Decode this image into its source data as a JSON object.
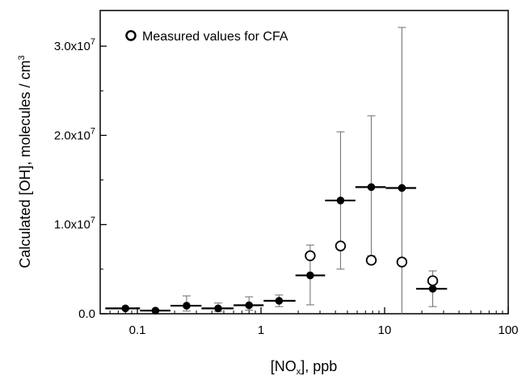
{
  "chart_data": {
    "type": "scatter",
    "xscale": "log",
    "xlim": [
      0.05,
      100
    ],
    "ylim": [
      0,
      34000000.0
    ],
    "xticks": [
      {
        "value": 0.1,
        "label": "0.1"
      },
      {
        "value": 1,
        "label": "1"
      },
      {
        "value": 10,
        "label": "10"
      },
      {
        "value": 100,
        "label": "100"
      }
    ],
    "yticks": [
      {
        "value": 0,
        "label": "0.0"
      },
      {
        "value": 10000000.0,
        "label": "1.0x10",
        "sup": "7"
      },
      {
        "value": 20000000.0,
        "label": "2.0x10",
        "sup": "7"
      },
      {
        "value": 30000000.0,
        "label": "3.0x10",
        "sup": "7"
      }
    ],
    "xlabel": {
      "pre": "[NO",
      "sub": "x",
      "post": "], ppb"
    },
    "ylabel": {
      "pre": "Calculated [OH], molecules / cm",
      "sup": "3"
    },
    "legend": {
      "label": "Measured values for CFA",
      "position": "top-left"
    },
    "grid": false,
    "series": [
      {
        "marker": "filled-circle",
        "points": [
          {
            "x": 0.08,
            "y": 600000.0,
            "xlo": 0.055,
            "xhi": 0.105,
            "ylo": null,
            "yhi": null
          },
          {
            "x": 0.14,
            "y": 350000.0,
            "xlo": 0.105,
            "xhi": 0.185,
            "ylo": null,
            "yhi": null
          },
          {
            "x": 0.25,
            "y": 900000.0,
            "xlo": 0.185,
            "xhi": 0.33,
            "ylo": 300000.0,
            "yhi": 2000000.0
          },
          {
            "x": 0.45,
            "y": 600000.0,
            "xlo": 0.33,
            "xhi": 0.6,
            "ylo": 250000.0,
            "yhi": 1200000.0
          },
          {
            "x": 0.8,
            "y": 950000.0,
            "xlo": 0.6,
            "xhi": 1.05,
            "ylo": 400000.0,
            "yhi": 1900000.0
          },
          {
            "x": 1.4,
            "y": 1450000.0,
            "xlo": 1.05,
            "xhi": 1.9,
            "ylo": 800000.0,
            "yhi": 2100000.0
          },
          {
            "x": 2.5,
            "y": 4300000.0,
            "xlo": 1.9,
            "xhi": 3.3,
            "ylo": 1000000.0,
            "yhi": 7700000.0
          },
          {
            "x": 4.4,
            "y": 12700000.0,
            "xlo": 3.3,
            "xhi": 5.8,
            "ylo": 5000000.0,
            "yhi": 20400000.0
          },
          {
            "x": 7.8,
            "y": 14200000.0,
            "xlo": 5.8,
            "xhi": 10.2,
            "ylo": 6500000.0,
            "yhi": 22200000.0
          },
          {
            "x": 13.8,
            "y": 14100000.0,
            "xlo": 10.2,
            "xhi": 18.0,
            "ylo": 0,
            "yhi": 32100000.0
          },
          {
            "x": 24.5,
            "y": 2800000.0,
            "xlo": 18.0,
            "xhi": 32.0,
            "ylo": 800000.0,
            "yhi": 4800000.0
          }
        ]
      },
      {
        "marker": "open-circle",
        "points": [
          {
            "x": 2.5,
            "y": 6500000.0
          },
          {
            "x": 4.4,
            "y": 7600000.0
          },
          {
            "x": 7.8,
            "y": 6000000.0
          },
          {
            "x": 13.8,
            "y": 5800000.0
          },
          {
            "x": 24.5,
            "y": 3700000.0
          }
        ]
      }
    ]
  }
}
